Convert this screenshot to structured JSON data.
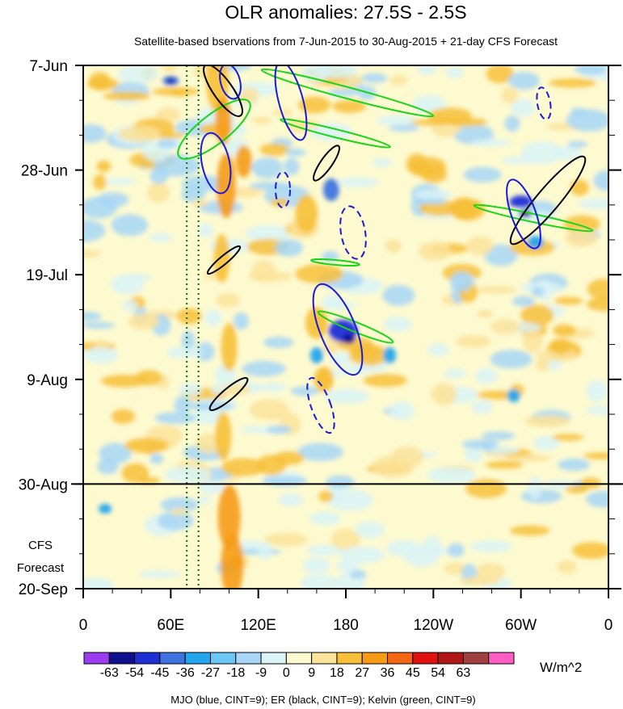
{
  "chart_data": {
    "type": "heatmap",
    "title": "OLR anomalies: 27.5S - 2.5S",
    "subtitle": "Satellite-based bservations from 7-Jun-2015 to 30-Aug-2015 + 21-day CFS Forecast",
    "y_ticks": [
      "7-Jun",
      "28-Jun",
      "19-Jul",
      "9-Aug",
      "30-Aug",
      "20-Sep"
    ],
    "y_values": [
      "2015-06-07",
      "2015-06-28",
      "2015-07-19",
      "2015-08-09",
      "2015-08-30",
      "2015-09-20"
    ],
    "x_ticks": [
      "0",
      "60E",
      "120E",
      "180",
      "120W",
      "60W",
      "0"
    ],
    "x_values": [
      0,
      60,
      120,
      180,
      240,
      300,
      360
    ],
    "forecast_start": "2015-08-30",
    "forecast_label": [
      "CFS",
      "Forecast"
    ],
    "dashed_lines_lon": [
      71,
      79
    ],
    "colorbar": {
      "levels": [
        -63,
        -54,
        -45,
        -36,
        -27,
        -18,
        -9,
        0,
        9,
        18,
        27,
        36,
        45,
        54,
        63
      ],
      "labels": [
        "-63",
        "-54",
        "-45",
        "-36",
        "-27",
        "-18",
        "-9",
        "0",
        "9",
        "18",
        "27",
        "36",
        "45",
        "54",
        "63"
      ],
      "colors": [
        "#9b3cf0",
        "#10108e",
        "#1f2fd6",
        "#3f74e0",
        "#22a7ee",
        "#6ac6f2",
        "#a7d6f7",
        "#d9f3f7",
        "#fdfad0",
        "#fce39a",
        "#f7c038",
        "#f59b14",
        "#f26614",
        "#e0120f",
        "#b01616",
        "#a04040",
        "#ff5cc4"
      ],
      "units": "W/m^2"
    },
    "contours_note": "MJO (blue, CINT=9); ER (black, CINT=9); Kelvin (green, CINT=9)",
    "contour_colors": {
      "mjo": "#1a1ad6",
      "er": "#000000",
      "kelvin": "#19d619"
    }
  }
}
